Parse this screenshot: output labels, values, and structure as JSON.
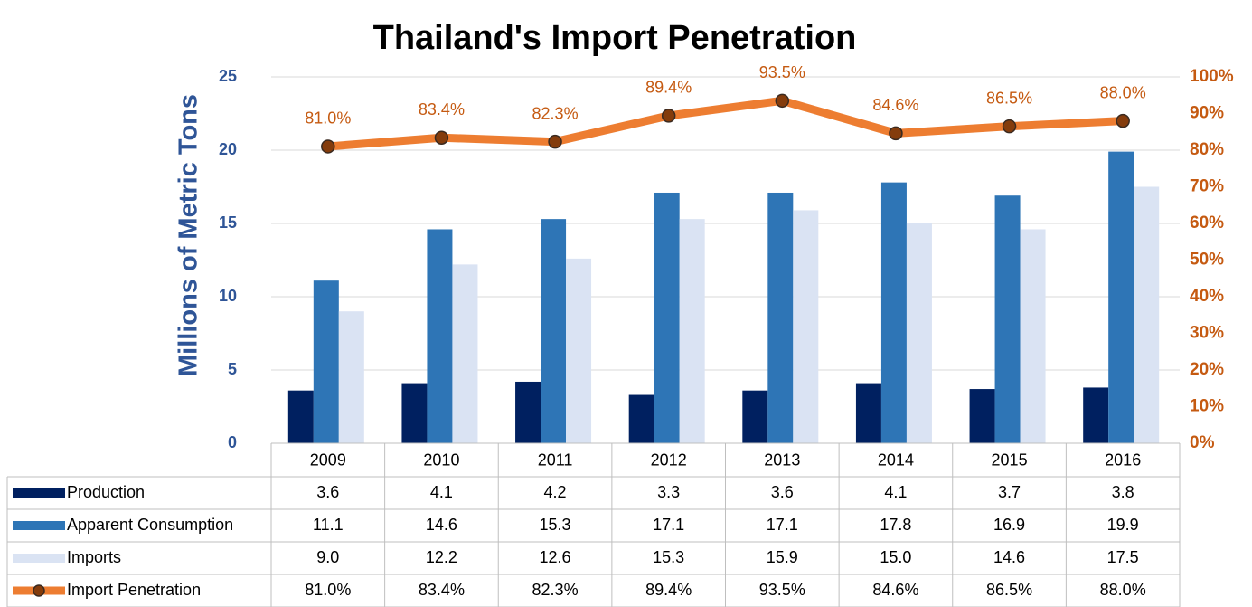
{
  "chart_data": {
    "type": "bar",
    "title": "Thailand's Import Penetration",
    "ylabel": "Millions of Metric Tons",
    "categories": [
      "2009",
      "2010",
      "2011",
      "2012",
      "2013",
      "2014",
      "2015",
      "2016"
    ],
    "series": [
      {
        "name": "Production",
        "color": "#002060",
        "values": [
          3.6,
          4.1,
          4.2,
          3.3,
          3.6,
          4.1,
          3.7,
          3.8
        ],
        "value_labels": [
          "3.6",
          "4.1",
          "4.2",
          "3.3",
          "3.6",
          "4.1",
          "3.7",
          "3.8"
        ]
      },
      {
        "name": "Apparent Consumption",
        "color": "#2e75b6",
        "values": [
          11.1,
          14.6,
          15.3,
          17.1,
          17.1,
          17.8,
          16.9,
          19.9
        ],
        "value_labels": [
          "11.1",
          "14.6",
          "15.3",
          "17.1",
          "17.1",
          "17.8",
          "16.9",
          "19.9"
        ]
      },
      {
        "name": "Imports",
        "color": "#dae3f3",
        "values": [
          9.0,
          12.2,
          12.6,
          15.3,
          15.9,
          15.0,
          14.6,
          17.5
        ],
        "value_labels": [
          "9.0",
          "12.2",
          "12.6",
          "15.3",
          "15.9",
          "15.0",
          "14.6",
          "17.5"
        ]
      },
      {
        "name": "Import Penetration",
        "type": "line",
        "axis": "y2",
        "color": "#ed7d31",
        "marker_color": "#843c0c",
        "values": [
          81.0,
          83.4,
          82.3,
          89.4,
          93.5,
          84.6,
          86.5,
          88.0
        ],
        "value_labels": [
          "81.0%",
          "83.4%",
          "82.3%",
          "89.4%",
          "93.5%",
          "84.6%",
          "86.5%",
          "88.0%"
        ]
      }
    ],
    "ylim": [
      0,
      25
    ],
    "yticks": [
      0,
      5,
      10,
      15,
      20,
      25
    ],
    "y2lim": [
      0,
      100
    ],
    "y2ticks": [
      {
        "value": 0,
        "label": "0%"
      },
      {
        "value": 10,
        "label": "10%"
      },
      {
        "value": 20,
        "label": "20%"
      },
      {
        "value": 30,
        "label": "30%"
      },
      {
        "value": 40,
        "label": "40%"
      },
      {
        "value": 50,
        "label": "50%"
      },
      {
        "value": 60,
        "label": "60%"
      },
      {
        "value": 70,
        "label": "70%"
      },
      {
        "value": 80,
        "label": "80%"
      },
      {
        "value": 90,
        "label": "90%"
      },
      {
        "value": 100,
        "label": "100%"
      }
    ],
    "grid": true,
    "data_table": true
  }
}
